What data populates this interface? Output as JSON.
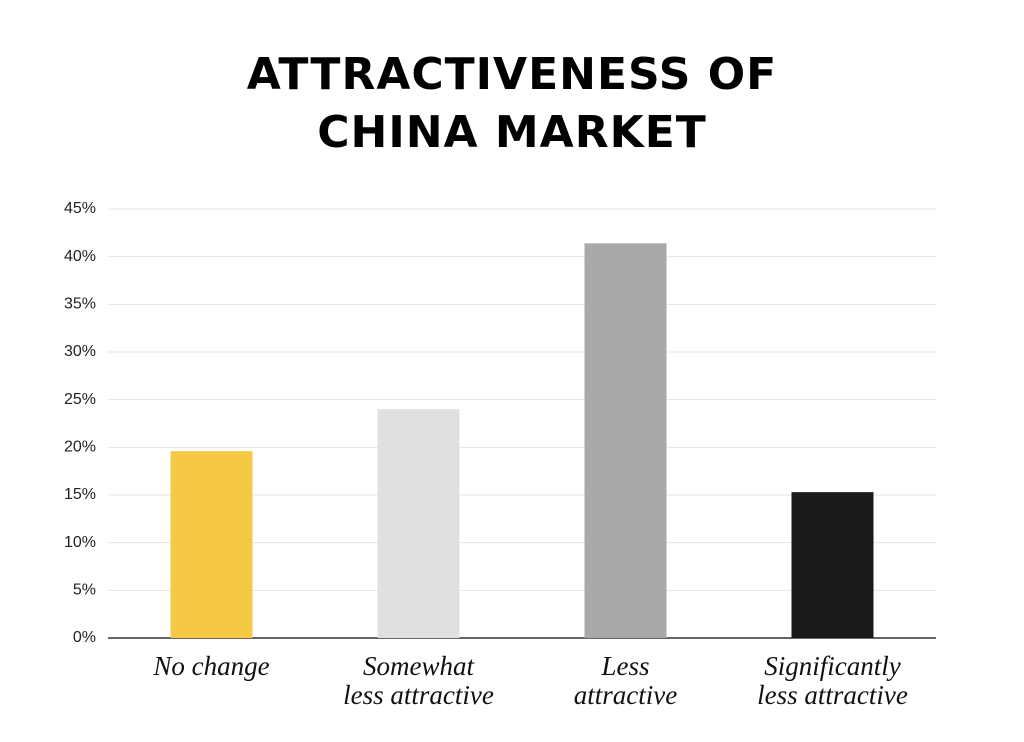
{
  "chart_data": {
    "type": "bar",
    "title": "ATTRACTIVENESS OF\nCHINA MARKET",
    "categories": [
      "No change",
      "Somewhat\nless attractive",
      "Less\nattractive",
      "Significantly\nless attractive"
    ],
    "values": [
      19.6,
      24.0,
      41.4,
      15.3
    ],
    "colors": [
      "#f5c944",
      "#e0e0df",
      "#a9a9a8",
      "#1a1a1a"
    ],
    "ylim": [
      0,
      45
    ],
    "yticks": [
      {
        "value": 0,
        "label": "0%"
      },
      {
        "value": 5,
        "label": "5%"
      },
      {
        "value": 10,
        "label": "10%"
      },
      {
        "value": 15,
        "label": "15%"
      },
      {
        "value": 20,
        "label": "20%"
      },
      {
        "value": 25,
        "label": "25%"
      },
      {
        "value": 30,
        "label": "30%"
      },
      {
        "value": 35,
        "label": "35%"
      },
      {
        "value": 40,
        "label": "40%"
      },
      {
        "value": 45,
        "label": "45%"
      }
    ],
    "grid": true
  }
}
